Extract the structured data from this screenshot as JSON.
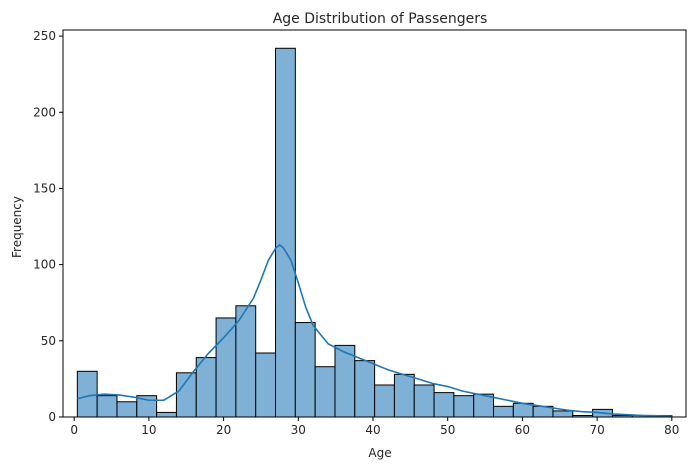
{
  "chart_data": {
    "type": "bar",
    "subtype": "histogram with KDE",
    "title": "Age Distribution of Passengers",
    "xlabel": "Age",
    "ylabel": "Frequency",
    "xlim": [
      -1.5,
      81.9
    ],
    "ylim": [
      0,
      254
    ],
    "xticks": [
      0,
      10,
      20,
      30,
      40,
      50,
      60,
      70,
      80
    ],
    "yticks": [
      0,
      50,
      100,
      150,
      200,
      250
    ],
    "bin_start": 0.42,
    "bin_width": 2.653,
    "values": [
      30,
      14,
      10,
      14,
      3,
      29,
      39,
      65,
      73,
      42,
      242,
      62,
      33,
      47,
      37,
      21,
      28,
      21,
      16,
      14,
      15,
      7,
      9,
      7,
      4,
      1,
      5,
      1,
      1,
      1
    ],
    "kde": {
      "x": [
        0.42,
        2,
        4,
        6,
        8,
        10,
        12,
        14,
        16,
        18,
        20,
        22,
        24,
        25,
        26,
        27,
        27.5,
        28,
        29,
        30,
        31,
        32,
        34,
        36,
        38,
        40,
        42,
        44,
        46,
        48,
        50,
        52,
        54,
        56,
        58,
        60,
        62,
        64,
        66,
        68,
        70,
        72,
        74,
        76,
        78,
        80
      ],
      "y": [
        12,
        14,
        15,
        14.5,
        13,
        11,
        11,
        17,
        30,
        42,
        52,
        63,
        78,
        90,
        103,
        111,
        113,
        111,
        103,
        88,
        72,
        60,
        48,
        43,
        39,
        35,
        31,
        28,
        25,
        22,
        20,
        17,
        15,
        13,
        11,
        9,
        7.5,
        6,
        4.5,
        3.5,
        3,
        2,
        1.5,
        1,
        0.8,
        0.6
      ]
    },
    "bar_color": "#7fb0d5",
    "bar_edge_color": "#000000",
    "kde_color": "#1f77b4",
    "grid": false,
    "legend": "none"
  }
}
